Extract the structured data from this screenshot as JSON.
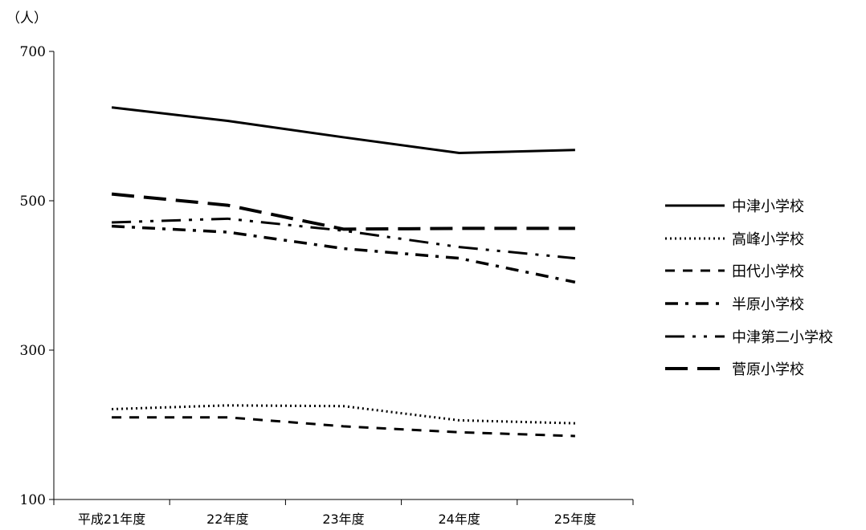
{
  "chart_data": {
    "type": "line",
    "y_unit": "（人）",
    "categories": [
      "平成21年度",
      "22年度",
      "23年度",
      "24年度",
      "25年度"
    ],
    "yticks": [
      100,
      300,
      500,
      700
    ],
    "ylim": [
      100,
      700
    ],
    "grid": false,
    "legend_position": "right",
    "series": [
      {
        "name": "中津小学校",
        "dash": "solid",
        "width": 3,
        "values": [
          625,
          607,
          585,
          564,
          568
        ]
      },
      {
        "name": "高峰小学校",
        "dash": "dotted",
        "width": 3,
        "values": [
          221,
          226,
          225,
          206,
          202
        ]
      },
      {
        "name": "田代小学校",
        "dash": "dash",
        "width": 3,
        "values": [
          210,
          210,
          198,
          190,
          185
        ]
      },
      {
        "name": "半原小学校",
        "dash": "dash-dot",
        "width": 3.5,
        "values": [
          466,
          458,
          436,
          423,
          391
        ]
      },
      {
        "name": "中津第二小学校",
        "dash": "long-dash-dot-dot",
        "width": 3,
        "values": [
          471,
          476,
          460,
          438,
          423
        ]
      },
      {
        "name": "菅原小学校",
        "dash": "long-dash",
        "width": 4,
        "values": [
          509,
          494,
          462,
          463,
          463
        ]
      }
    ]
  }
}
